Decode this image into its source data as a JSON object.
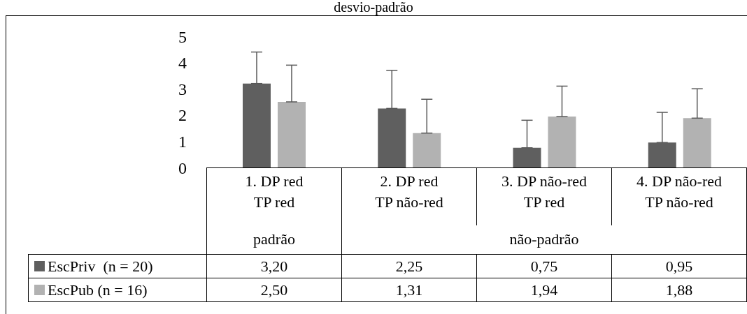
{
  "chart_data": {
    "type": "bar",
    "title": "desvio-padrão",
    "categories": [
      "1. DP red\nTP red",
      "2. DP red\nTP não-red",
      "3. DP não-red\nTP red",
      "4. DP não-red\nTP não-red"
    ],
    "series": [
      {
        "name": "EscPriv  (n = 20)",
        "color": "#5f5f5f",
        "values": [
          3.2,
          2.25,
          0.75,
          0.95
        ],
        "value_labels": [
          "3,20",
          "2,25",
          "0,75",
          "0,95"
        ],
        "errors": [
          [
            3.2,
            4.4
          ],
          [
            2.25,
            3.7
          ],
          [
            0.75,
            1.8
          ],
          [
            0.95,
            2.1
          ]
        ]
      },
      {
        "name": "EscPub (n = 16)",
        "color": "#b2b2b2",
        "values": [
          2.5,
          1.31,
          1.94,
          1.88
        ],
        "value_labels": [
          "2,50",
          "1,31",
          "1,94",
          "1,88"
        ],
        "errors": [
          [
            2.5,
            3.9
          ],
          [
            1.31,
            2.6
          ],
          [
            1.94,
            3.1
          ],
          [
            1.88,
            3.0
          ]
        ]
      }
    ],
    "ylim": [
      0,
      5
    ],
    "yticks": [
      0,
      1,
      2,
      3,
      4,
      5
    ],
    "legend": "bottom",
    "annotations": [
      "padrão",
      "não-padrão"
    ]
  }
}
